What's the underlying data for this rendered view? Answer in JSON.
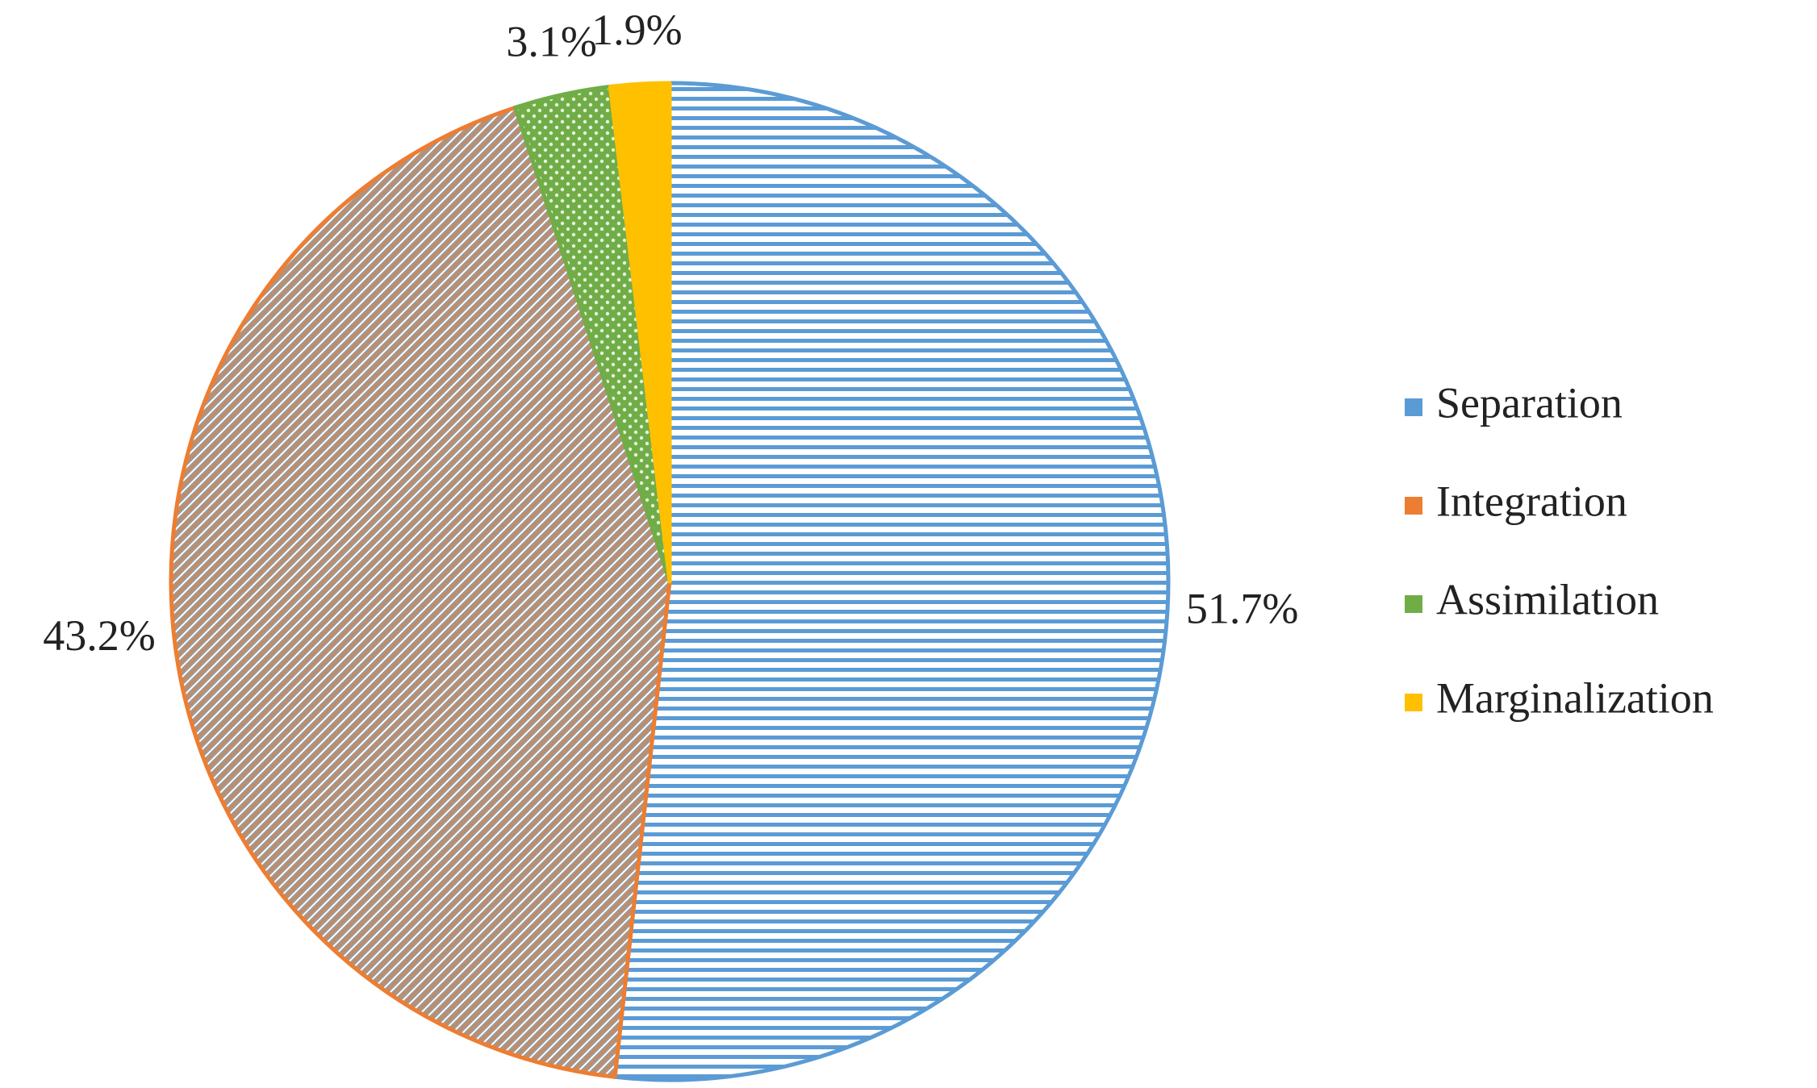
{
  "chart_data": {
    "type": "pie",
    "categories": [
      "Separation",
      "Integration",
      "Assimilation",
      "Marginalization"
    ],
    "values": [
      51.7,
      43.2,
      3.1,
      1.9
    ],
    "value_labels": [
      "51.7%",
      "43.2%",
      "3.1%",
      "1.9%"
    ],
    "colors": [
      "#5b9bd5",
      "#ed7d31",
      "#70ad47",
      "#ffc000"
    ],
    "legend": "right"
  }
}
